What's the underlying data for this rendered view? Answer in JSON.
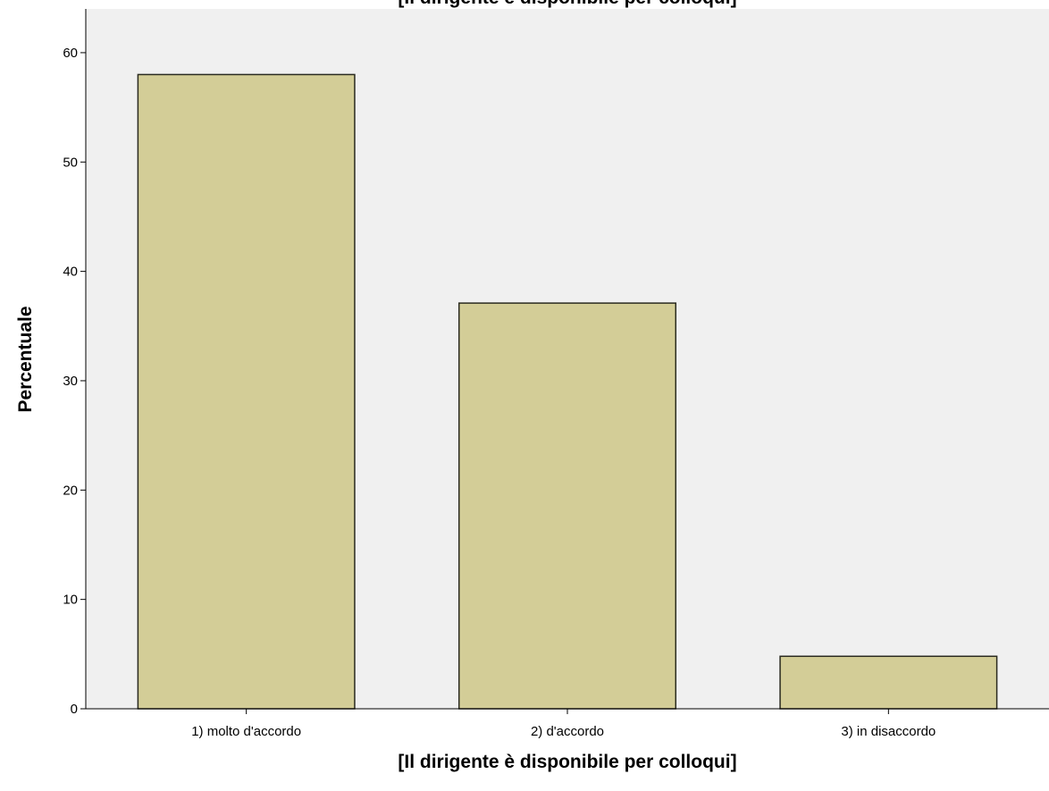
{
  "chart_data": {
    "type": "bar",
    "title": "[Il dirigente è disponibile per colloqui]",
    "xlabel": "[Il dirigente è disponibile per colloqui]",
    "ylabel": "Percentuale",
    "categories": [
      "1) molto d'accordo",
      "2) d'accordo",
      "3) in disaccordo"
    ],
    "values": [
      58.0,
      37.1,
      4.8
    ],
    "ylim": [
      0,
      64
    ],
    "yticks": [
      0,
      10,
      20,
      30,
      40,
      50,
      60
    ],
    "grid": false,
    "colors": {
      "bar_fill": "#d3cd97",
      "bar_stroke": "#2a2a1f",
      "plot_background": "#f0f0f0",
      "page_background": "#ffffff"
    }
  }
}
